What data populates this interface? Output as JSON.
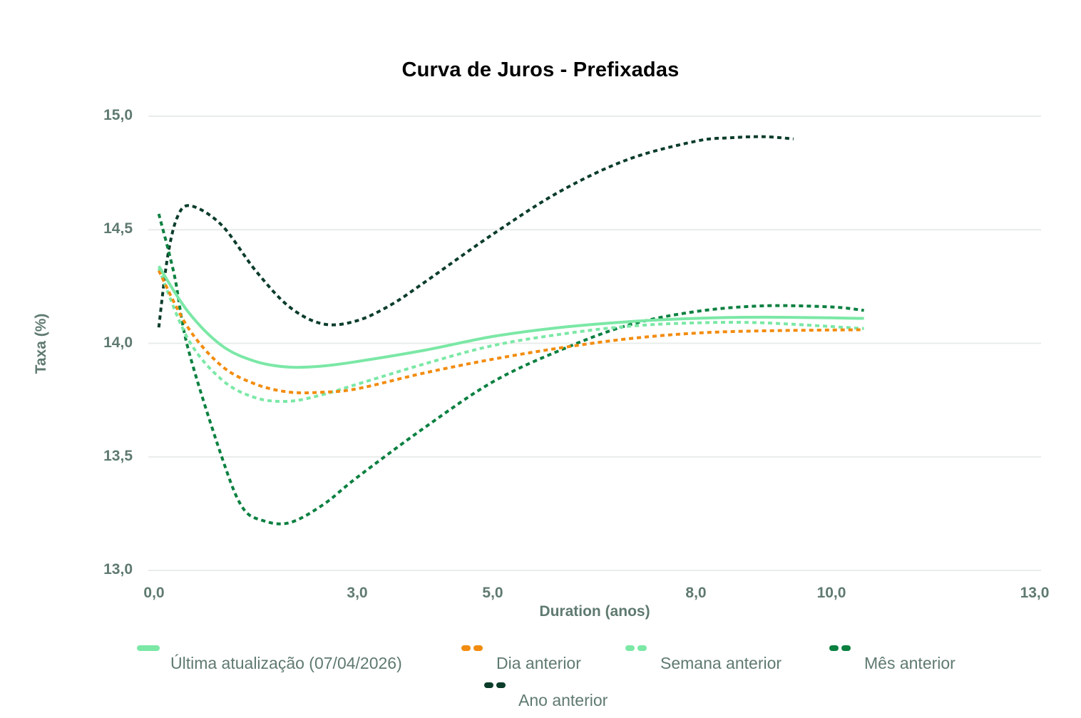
{
  "chart_data": {
    "type": "line",
    "title": "Curva de Juros - Prefixadas",
    "xlabel": "Duration (anos)",
    "ylabel": "Taxa (%)",
    "xlim": [
      0,
      13
    ],
    "ylim": [
      13.0,
      15.0
    ],
    "x_ticks": [
      "0,0",
      "3,0",
      "5,0",
      "8,0",
      "10,0",
      "13,0"
    ],
    "x_tick_values": [
      0,
      3,
      5,
      8,
      10,
      13
    ],
    "y_ticks": [
      "15,0",
      "14,5",
      "14,0",
      "13,5",
      "13,0"
    ],
    "y_tick_values": [
      15.0,
      14.5,
      14.0,
      13.5,
      13.0
    ],
    "grid": "horizontal",
    "legend_position": "bottom",
    "series": [
      {
        "name": "Última atualização (07/04/2026)",
        "color": "#7BE8A6",
        "style": "solid",
        "x": [
          0.07,
          0.5,
          1.0,
          1.5,
          2.0,
          2.5,
          3.0,
          4.0,
          5.0,
          6.0,
          7.0,
          8.0,
          9.0,
          10.48
        ],
        "y": [
          14.34,
          14.14,
          13.99,
          13.92,
          13.895,
          13.9,
          13.92,
          13.97,
          14.03,
          14.07,
          14.095,
          14.11,
          14.115,
          14.11
        ]
      },
      {
        "name": "Dia anterior",
        "color": "#F28C0F",
        "style": "dotted",
        "x": [
          0.07,
          0.5,
          1.0,
          1.5,
          2.0,
          2.5,
          3.0,
          4.0,
          5.0,
          6.0,
          7.0,
          8.0,
          9.0,
          10.48
        ],
        "y": [
          14.32,
          14.07,
          13.9,
          13.82,
          13.785,
          13.785,
          13.8,
          13.87,
          13.93,
          13.98,
          14.02,
          14.045,
          14.055,
          14.06
        ]
      },
      {
        "name": "Semana anterior",
        "color": "#7BE8A6",
        "style": "dotted",
        "x": [
          0.07,
          0.5,
          1.0,
          1.5,
          2.0,
          2.5,
          3.0,
          4.0,
          5.0,
          6.0,
          7.0,
          8.0,
          9.0,
          10.48
        ],
        "y": [
          14.33,
          14.02,
          13.84,
          13.76,
          13.745,
          13.775,
          13.82,
          13.91,
          13.99,
          14.04,
          14.075,
          14.09,
          14.09,
          14.065
        ]
      },
      {
        "name": "Mês anterior",
        "color": "#0A8040",
        "style": "dotted",
        "x": [
          0.07,
          0.3,
          0.5,
          1.0,
          1.3,
          1.6,
          2.0,
          2.5,
          3.0,
          4.0,
          5.0,
          6.0,
          7.0,
          8.0,
          9.0,
          10.0,
          10.48
        ],
        "y": [
          14.57,
          14.3,
          13.98,
          13.5,
          13.28,
          13.22,
          13.21,
          13.29,
          13.41,
          13.63,
          13.83,
          13.97,
          14.08,
          14.14,
          14.165,
          14.16,
          14.145
        ]
      },
      {
        "name": "Ano anterior",
        "color": "#0B3D2A",
        "style": "dotted",
        "x": [
          0.07,
          0.2,
          0.35,
          0.55,
          1.0,
          1.5,
          2.0,
          2.5,
          3.0,
          3.5,
          4.0,
          5.0,
          6.0,
          7.0,
          8.0,
          8.5,
          9.0,
          9.44
        ],
        "y": [
          14.07,
          14.38,
          14.56,
          14.605,
          14.52,
          14.32,
          14.16,
          14.085,
          14.1,
          14.17,
          14.27,
          14.48,
          14.67,
          14.81,
          14.89,
          14.905,
          14.91,
          14.9
        ]
      }
    ]
  },
  "legend": {
    "items": [
      {
        "label": "Última atualização (07/04/2026)"
      },
      {
        "label": "Dia anterior"
      },
      {
        "label": "Semana anterior"
      },
      {
        "label": "Mês anterior"
      },
      {
        "label": "Ano anterior"
      }
    ]
  },
  "colors": {
    "axis_text": "#5f7a6f",
    "grid": "#e8ecea"
  }
}
